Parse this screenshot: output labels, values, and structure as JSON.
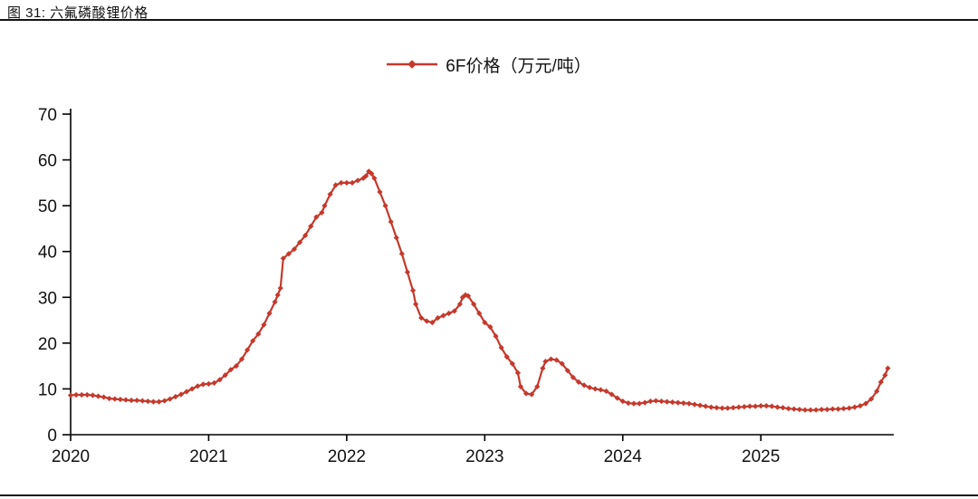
{
  "figure": {
    "title": "图 31: 六氟磷酸锂价格",
    "legend_label": "6F价格（万元/吨）"
  },
  "chart_data": {
    "type": "line",
    "title": "图 31: 六氟磷酸锂价格",
    "xlabel": "",
    "ylabel": "",
    "x_ticks": [
      2020,
      2021,
      2022,
      2023,
      2024,
      2025
    ],
    "y_ticks": [
      0,
      10,
      20,
      30,
      40,
      50,
      60,
      70
    ],
    "xlim": [
      2020,
      2025.95
    ],
    "ylim": [
      0,
      70
    ],
    "grid": false,
    "legend_position": "top-center",
    "marker": "diamond",
    "series": [
      {
        "name": "6F价格（万元/吨）",
        "color": "#C5392C",
        "points": [
          [
            2020.0,
            8.6
          ],
          [
            2020.04,
            8.7
          ],
          [
            2020.08,
            8.7
          ],
          [
            2020.12,
            8.7
          ],
          [
            2020.16,
            8.6
          ],
          [
            2020.2,
            8.4
          ],
          [
            2020.24,
            8.2
          ],
          [
            2020.28,
            7.9
          ],
          [
            2020.32,
            7.8
          ],
          [
            2020.36,
            7.7
          ],
          [
            2020.4,
            7.6
          ],
          [
            2020.44,
            7.5
          ],
          [
            2020.48,
            7.5
          ],
          [
            2020.52,
            7.4
          ],
          [
            2020.56,
            7.3
          ],
          [
            2020.6,
            7.2
          ],
          [
            2020.64,
            7.2
          ],
          [
            2020.68,
            7.4
          ],
          [
            2020.72,
            7.8
          ],
          [
            2020.76,
            8.3
          ],
          [
            2020.8,
            8.8
          ],
          [
            2020.84,
            9.4
          ],
          [
            2020.88,
            10.0
          ],
          [
            2020.92,
            10.6
          ],
          [
            2020.96,
            11.0
          ],
          [
            2021.0,
            11.1
          ],
          [
            2021.04,
            11.3
          ],
          [
            2021.08,
            12.0
          ],
          [
            2021.12,
            13.0
          ],
          [
            2021.16,
            14.2
          ],
          [
            2021.2,
            15.0
          ],
          [
            2021.24,
            16.5
          ],
          [
            2021.28,
            18.5
          ],
          [
            2021.32,
            20.5
          ],
          [
            2021.36,
            22.0
          ],
          [
            2021.4,
            24.0
          ],
          [
            2021.44,
            26.5
          ],
          [
            2021.48,
            29.0
          ],
          [
            2021.5,
            30.5
          ],
          [
            2021.52,
            32.0
          ],
          [
            2021.54,
            38.5
          ],
          [
            2021.58,
            39.5
          ],
          [
            2021.62,
            40.5
          ],
          [
            2021.66,
            42.0
          ],
          [
            2021.7,
            43.5
          ],
          [
            2021.74,
            45.5
          ],
          [
            2021.78,
            47.5
          ],
          [
            2021.82,
            48.5
          ],
          [
            2021.84,
            50.0
          ],
          [
            2021.88,
            52.5
          ],
          [
            2021.92,
            54.5
          ],
          [
            2021.96,
            55.0
          ],
          [
            2022.0,
            55.0
          ],
          [
            2022.04,
            55.0
          ],
          [
            2022.08,
            55.5
          ],
          [
            2022.12,
            56.0
          ],
          [
            2022.14,
            56.5
          ],
          [
            2022.16,
            57.5
          ],
          [
            2022.18,
            57.0
          ],
          [
            2022.2,
            56.0
          ],
          [
            2022.24,
            53.0
          ],
          [
            2022.28,
            50.0
          ],
          [
            2022.32,
            46.5
          ],
          [
            2022.36,
            43.0
          ],
          [
            2022.4,
            39.5
          ],
          [
            2022.44,
            35.5
          ],
          [
            2022.48,
            31.5
          ],
          [
            2022.5,
            28.5
          ],
          [
            2022.54,
            25.5
          ],
          [
            2022.58,
            24.8
          ],
          [
            2022.62,
            24.5
          ],
          [
            2022.66,
            25.5
          ],
          [
            2022.7,
            26.0
          ],
          [
            2022.74,
            26.5
          ],
          [
            2022.78,
            27.0
          ],
          [
            2022.82,
            28.5
          ],
          [
            2022.84,
            30.0
          ],
          [
            2022.86,
            30.5
          ],
          [
            2022.88,
            30.3
          ],
          [
            2022.92,
            28.5
          ],
          [
            2022.96,
            26.5
          ],
          [
            2023.0,
            24.5
          ],
          [
            2023.04,
            23.5
          ],
          [
            2023.08,
            21.5
          ],
          [
            2023.12,
            19.0
          ],
          [
            2023.16,
            17.0
          ],
          [
            2023.2,
            15.5
          ],
          [
            2023.24,
            13.5
          ],
          [
            2023.26,
            10.5
          ],
          [
            2023.3,
            9.0
          ],
          [
            2023.34,
            8.8
          ],
          [
            2023.38,
            10.5
          ],
          [
            2023.42,
            14.5
          ],
          [
            2023.44,
            16.0
          ],
          [
            2023.48,
            16.5
          ],
          [
            2023.52,
            16.3
          ],
          [
            2023.56,
            15.5
          ],
          [
            2023.6,
            14.0
          ],
          [
            2023.64,
            12.5
          ],
          [
            2023.68,
            11.5
          ],
          [
            2023.72,
            10.8
          ],
          [
            2023.76,
            10.3
          ],
          [
            2023.8,
            10.0
          ],
          [
            2023.84,
            9.8
          ],
          [
            2023.88,
            9.5
          ],
          [
            2023.92,
            8.8
          ],
          [
            2023.96,
            8.0
          ],
          [
            2024.0,
            7.3
          ],
          [
            2024.04,
            6.9
          ],
          [
            2024.08,
            6.8
          ],
          [
            2024.12,
            6.8
          ],
          [
            2024.16,
            7.0
          ],
          [
            2024.2,
            7.3
          ],
          [
            2024.24,
            7.4
          ],
          [
            2024.28,
            7.3
          ],
          [
            2024.32,
            7.2
          ],
          [
            2024.36,
            7.1
          ],
          [
            2024.4,
            7.0
          ],
          [
            2024.44,
            6.9
          ],
          [
            2024.48,
            6.8
          ],
          [
            2024.52,
            6.6
          ],
          [
            2024.56,
            6.4
          ],
          [
            2024.6,
            6.2
          ],
          [
            2024.64,
            6.0
          ],
          [
            2024.68,
            5.9
          ],
          [
            2024.72,
            5.8
          ],
          [
            2024.76,
            5.8
          ],
          [
            2024.8,
            5.9
          ],
          [
            2024.84,
            6.0
          ],
          [
            2024.88,
            6.1
          ],
          [
            2024.92,
            6.2
          ],
          [
            2024.96,
            6.2
          ],
          [
            2025.0,
            6.3
          ],
          [
            2025.04,
            6.3
          ],
          [
            2025.08,
            6.2
          ],
          [
            2025.12,
            6.0
          ],
          [
            2025.16,
            5.9
          ],
          [
            2025.2,
            5.7
          ],
          [
            2025.24,
            5.6
          ],
          [
            2025.28,
            5.5
          ],
          [
            2025.32,
            5.4
          ],
          [
            2025.36,
            5.4
          ],
          [
            2025.4,
            5.4
          ],
          [
            2025.44,
            5.5
          ],
          [
            2025.48,
            5.5
          ],
          [
            2025.52,
            5.6
          ],
          [
            2025.56,
            5.6
          ],
          [
            2025.6,
            5.7
          ],
          [
            2025.64,
            5.8
          ],
          [
            2025.68,
            6.0
          ],
          [
            2025.72,
            6.3
          ],
          [
            2025.76,
            6.8
          ],
          [
            2025.8,
            7.8
          ],
          [
            2025.84,
            9.5
          ],
          [
            2025.87,
            11.5
          ],
          [
            2025.9,
            13.0
          ],
          [
            2025.92,
            14.5
          ]
        ]
      }
    ]
  }
}
